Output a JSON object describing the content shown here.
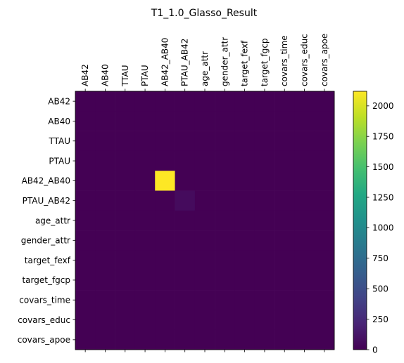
{
  "chart_data": {
    "type": "heatmap",
    "title": "T1_1.0_Glasso_Result",
    "x_labels": [
      "AB42",
      "AB40",
      "TTAU",
      "PTAU",
      "AB42_AB40",
      "PTAU_AB42",
      "age_attr",
      "gender_attr",
      "target_fexf",
      "target_fgcp",
      "covars_time",
      "covars_educ",
      "covars_apoe"
    ],
    "y_labels": [
      "AB42",
      "AB40",
      "TTAU",
      "PTAU",
      "AB42_AB40",
      "PTAU_AB42",
      "age_attr",
      "gender_attr",
      "target_fexf",
      "target_fgcp",
      "covars_time",
      "covars_educ",
      "covars_apoe"
    ],
    "values": [
      [
        0,
        0,
        0,
        0,
        0,
        0,
        0,
        0,
        0,
        0,
        0,
        0,
        0
      ],
      [
        0,
        0,
        0,
        0,
        0,
        0,
        0,
        0,
        0,
        0,
        0,
        0,
        0
      ],
      [
        0,
        0,
        0,
        0,
        0,
        0,
        0,
        0,
        0,
        0,
        0,
        0,
        0
      ],
      [
        0,
        0,
        0,
        0,
        0,
        0,
        0,
        0,
        0,
        0,
        0,
        0,
        0
      ],
      [
        0,
        0,
        0,
        0,
        2120,
        0,
        0,
        0,
        0,
        0,
        0,
        0,
        0
      ],
      [
        0,
        0,
        0,
        0,
        0,
        60,
        0,
        0,
        0,
        0,
        0,
        0,
        0
      ],
      [
        0,
        0,
        0,
        0,
        0,
        0,
        0,
        0,
        0,
        0,
        0,
        0,
        0
      ],
      [
        0,
        0,
        0,
        0,
        0,
        0,
        0,
        0,
        0,
        0,
        0,
        0,
        0
      ],
      [
        0,
        0,
        0,
        0,
        0,
        0,
        0,
        0,
        0,
        0,
        0,
        0,
        0
      ],
      [
        0,
        0,
        0,
        0,
        0,
        0,
        0,
        0,
        0,
        0,
        0,
        0,
        0
      ],
      [
        0,
        0,
        0,
        0,
        0,
        0,
        0,
        0,
        0,
        0,
        0,
        0,
        0
      ],
      [
        0,
        0,
        0,
        0,
        0,
        0,
        0,
        0,
        0,
        0,
        0,
        0,
        0
      ],
      [
        0,
        0,
        0,
        0,
        0,
        0,
        0,
        0,
        0,
        0,
        0,
        0,
        0
      ]
    ],
    "colorbar": {
      "range": [
        0,
        2120
      ],
      "ticks": [
        0,
        250,
        500,
        750,
        1000,
        1250,
        1500,
        1750,
        2000
      ],
      "colormap": "viridis"
    },
    "x_axis_position": "top"
  }
}
